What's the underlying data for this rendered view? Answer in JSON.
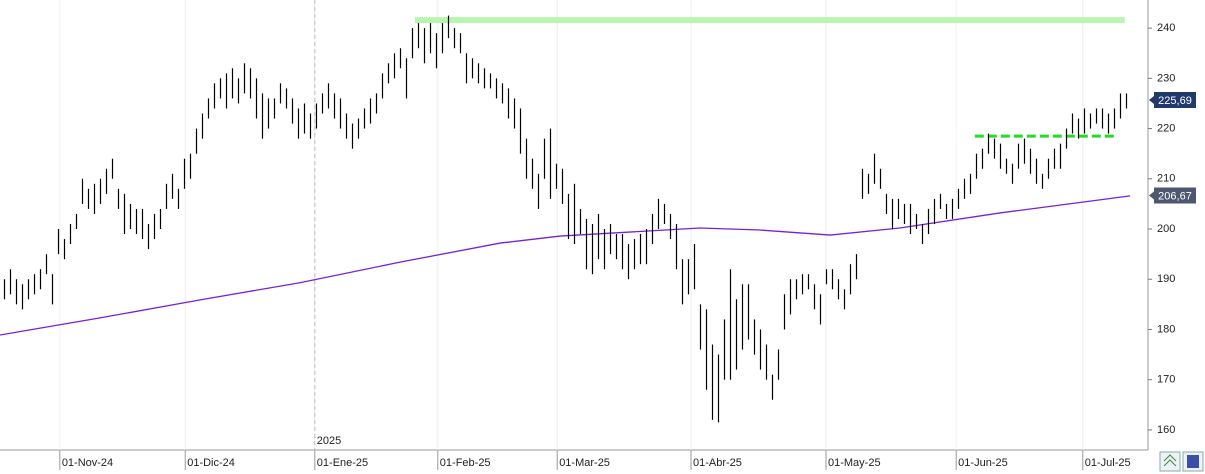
{
  "chart_data": {
    "type": "hlc",
    "high": [
      190,
      192,
      190,
      189,
      190,
      191,
      192,
      195,
      191,
      200,
      198,
      201,
      203,
      210,
      208,
      209,
      210,
      212,
      214,
      208,
      207,
      205,
      204,
      204,
      201,
      203,
      204,
      209,
      211,
      208,
      214,
      215,
      220,
      223,
      226,
      229,
      230,
      231,
      232,
      230,
      233,
      232,
      230,
      227,
      226,
      226,
      229,
      228,
      226,
      224,
      225,
      223,
      225,
      227,
      229,
      227,
      226,
      223,
      221,
      222,
      224,
      226,
      227,
      231,
      233,
      235,
      236,
      234,
      240,
      241,
      240,
      241,
      239,
      241,
      242.5,
      240,
      239,
      235,
      234,
      233,
      232,
      231,
      230,
      229,
      228,
      226,
      224,
      218,
      214,
      211,
      218,
      220,
      213,
      212,
      207,
      209,
      204,
      202,
      201,
      203,
      200,
      201,
      199,
      199,
      197,
      198,
      199,
      200,
      203,
      206,
      205,
      203,
      201,
      194,
      194,
      197,
      185,
      184,
      177,
      175,
      182,
      192,
      186,
      189,
      189,
      182,
      180,
      177,
      171,
      176,
      187,
      190,
      190,
      191,
      191,
      189,
      187,
      192,
      192,
      190,
      188,
      193,
      195,
      212,
      211,
      215,
      212,
      207,
      206,
      206,
      205,
      205,
      203,
      201,
      204,
      206,
      207,
      205,
      206,
      208,
      210,
      211,
      215,
      216,
      219,
      218,
      217,
      214,
      213,
      217,
      218,
      216,
      214,
      211,
      214,
      216,
      217,
      220,
      223,
      222,
      224,
      223,
      224,
      224,
      223,
      224,
      227,
      227
    ],
    "low": [
      186,
      187,
      185,
      184,
      186,
      187,
      188,
      191,
      185,
      195,
      194,
      197,
      200,
      205,
      204,
      203,
      205,
      207,
      210,
      204,
      199,
      200,
      199,
      198,
      196,
      198,
      200,
      204,
      206,
      204,
      208,
      210,
      215,
      218,
      222,
      224,
      226,
      224,
      226,
      225,
      227,
      226,
      222,
      218,
      220,
      222,
      225,
      224,
      221,
      218,
      219,
      218,
      220,
      223,
      224,
      222,
      220,
      218,
      216,
      218,
      220,
      221,
      223,
      226,
      229,
      230,
      232,
      226,
      234,
      236,
      233,
      235,
      232,
      235,
      238,
      236,
      235,
      229,
      230,
      229,
      228,
      228,
      226,
      225,
      222,
      220,
      215,
      210,
      208,
      204,
      210,
      206,
      208,
      205,
      198,
      197,
      199,
      192,
      191,
      194,
      192,
      195,
      194,
      192,
      190,
      192,
      193,
      193,
      197,
      200,
      201,
      198,
      192,
      185,
      187,
      188,
      176,
      168,
      162,
      161.5,
      170,
      170,
      172,
      176,
      178,
      175,
      172,
      170,
      166,
      170,
      180,
      183,
      186,
      187,
      188,
      184,
      181,
      189,
      188,
      186,
      184,
      187,
      190,
      206,
      207,
      209,
      208,
      203,
      200,
      202,
      201,
      199,
      200,
      197,
      199,
      201,
      204,
      202,
      202,
      204,
      206,
      207,
      210,
      212,
      215,
      214,
      212,
      211,
      209,
      212,
      213,
      211,
      209,
      208,
      210,
      212,
      212,
      216,
      219,
      218,
      219,
      220,
      221,
      220,
      219,
      220,
      222,
      224
    ],
    "color": "#000000",
    "moving_average": {
      "color": "#7b1fd6",
      "x": [
        -0.67,
        16,
        32.7,
        49.3,
        66,
        82.7,
        92.7,
        116,
        126,
        137.7,
        149.3,
        166,
        187.7
      ],
      "values": [
        178.9,
        182.3,
        185.9,
        189.3,
        193.4,
        197.2,
        198.6,
        200.2,
        199.8,
        198.8,
        200.2,
        203.2,
        206.6
      ]
    },
    "levels": [
      {
        "value": 241.6,
        "x": [
          68.5,
          186.8
        ],
        "color": "#b8f5b0",
        "style": "solid"
      },
      {
        "value": 218.5,
        "x": [
          161.8,
          185.2
        ],
        "color": "#22dd22",
        "style": "dashed"
      }
    ],
    "last_prices": [
      {
        "value": 225.69,
        "label": "225,69",
        "color": "#1f3a6b"
      },
      {
        "value": 206.67,
        "label": "206,67",
        "color": "#4d5870"
      }
    ],
    "year_marker": {
      "value": 51.8,
      "label": "2025"
    },
    "xlim": [
      -0.67,
      190.67
    ],
    "ylim": [
      156,
      245.6
    ],
    "yticks": [
      160,
      170,
      180,
      190,
      200,
      210,
      220,
      230,
      240
    ],
    "xticks": [
      {
        "value": 9.3,
        "label": "01-Nov-24"
      },
      {
        "value": 30.2,
        "label": "01-Dic-24"
      },
      {
        "value": 51.8,
        "label": "01-Ene-25"
      },
      {
        "value": 72.3,
        "label": "01-Feb-25"
      },
      {
        "value": 92.2,
        "label": "01-Mar-25"
      },
      {
        "value": 114.5,
        "label": "01-Abr-25"
      },
      {
        "value": 137,
        "label": "01-May-25"
      },
      {
        "value": 158.7,
        "label": "01-Jun-25"
      },
      {
        "value": 179.8,
        "label": "01-Jul-25"
      }
    ],
    "grid": true
  }
}
